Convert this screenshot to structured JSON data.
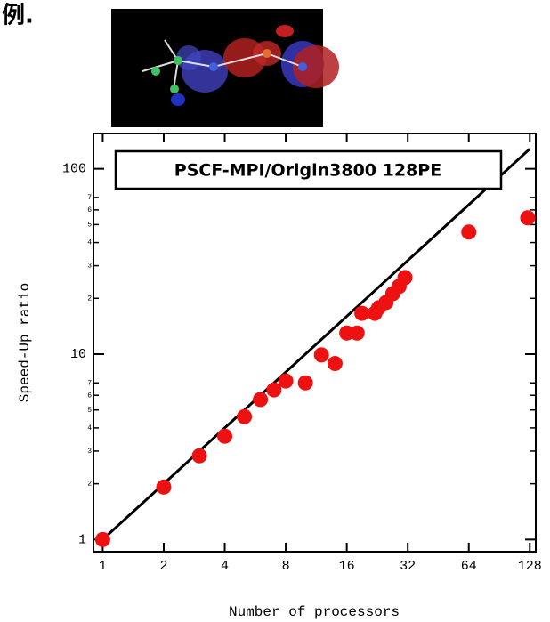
{
  "header": {
    "text": "例."
  },
  "chart_data": {
    "type": "scatter",
    "annotation": "PSCF-MPI/Origin3800 128PE",
    "xlabel": "Number of processors",
    "ylabel": "Speed-Up ratio",
    "xscale": "log",
    "yscale": "log",
    "x": [
      1,
      2,
      3,
      4,
      5,
      6,
      7,
      8,
      10,
      12,
      14,
      16,
      18,
      19,
      22,
      23,
      25,
      27,
      29,
      31,
      64,
      125
    ],
    "values": [
      1,
      1.92,
      2.83,
      3.61,
      4.6,
      5.69,
      6.42,
      7.17,
      7.0,
      9.9,
      8.9,
      13,
      13,
      16.6,
      16.6,
      17.8,
      19,
      21.2,
      23.2,
      25.9,
      45.6,
      54.4
    ],
    "color": "#ee1111",
    "reference_line": {
      "x": [
        1,
        128
      ],
      "values": [
        1,
        128
      ],
      "color": "#000000"
    },
    "xlim": [
      0.9,
      137
    ],
    "ylim": [
      0.86,
      155
    ],
    "xticks": [
      1,
      2,
      4,
      8,
      16,
      32,
      64,
      128
    ],
    "yticks": [
      1,
      10,
      100
    ],
    "yminorticks": [
      2,
      3,
      4,
      5,
      6,
      7,
      {
        "value": 20,
        "label": "2"
      },
      {
        "value": 30,
        "label": "3"
      },
      {
        "value": 40,
        "label": "4"
      },
      {
        "value": 50,
        "label": "5"
      },
      {
        "value": 60,
        "label": "6"
      },
      {
        "value": 70,
        "label": "7"
      }
    ],
    "grid": false
  }
}
